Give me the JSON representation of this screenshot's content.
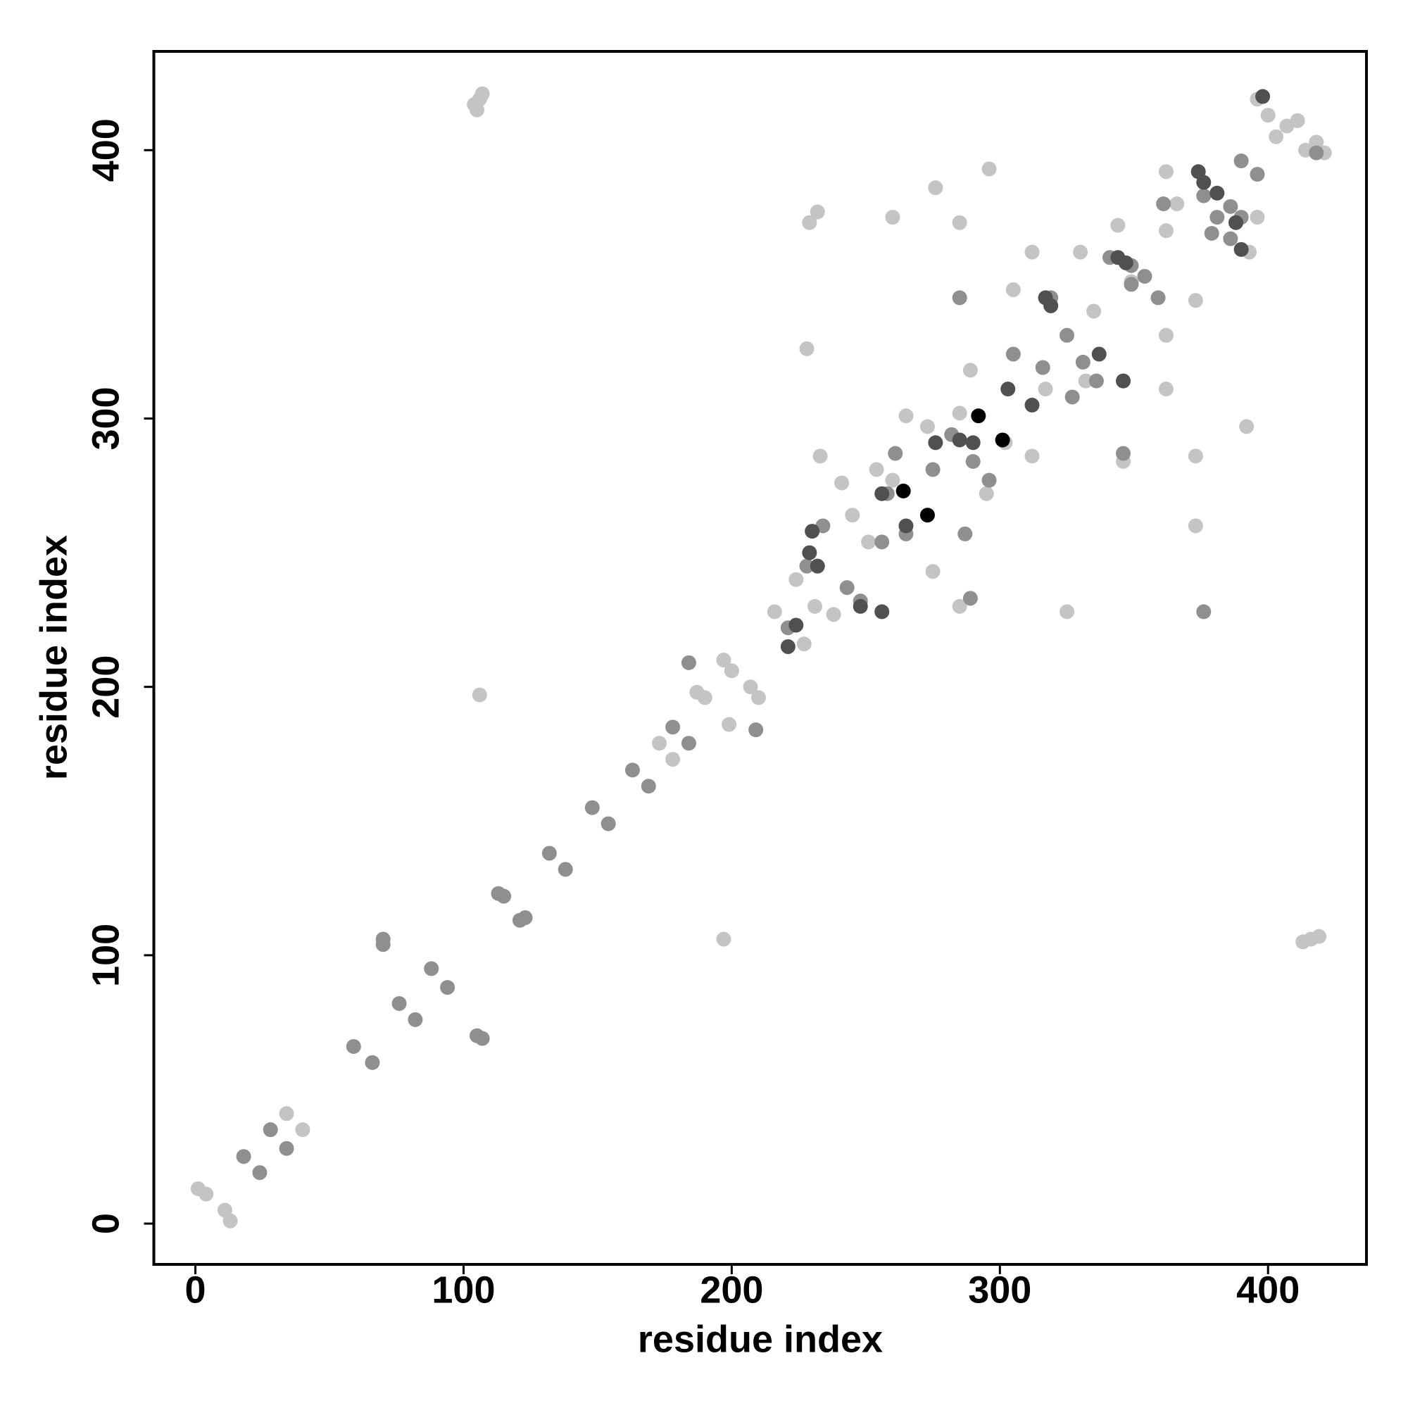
{
  "chart_data": {
    "type": "scatter",
    "xlabel": "residue index",
    "ylabel": "residue index",
    "xlim": [
      -15.5,
      436.7
    ],
    "ylim": [
      -15.2,
      436.8
    ],
    "xticks": [
      0,
      100,
      200,
      300,
      400
    ],
    "yticks": [
      0,
      100,
      200,
      300,
      400
    ],
    "series": [
      {
        "color": "#c4c4c4",
        "x": [
          1,
          4,
          11,
          13,
          34,
          40,
          104,
          106,
          107,
          105,
          106,
          197,
          413,
          416,
          419,
          396,
          400,
          403,
          407,
          411,
          414,
          418,
          421,
          173,
          178,
          187,
          190,
          197,
          200,
          199,
          207,
          210,
          216,
          227,
          228,
          229,
          232,
          260,
          276,
          285,
          296,
          260,
          275,
          285,
          325,
          373,
          373,
          392,
          362,
          362,
          362,
          362,
          373,
          312,
          330,
          344,
          366,
          393,
          396,
          346,
          312,
          317,
          332,
          335,
          349,
          305,
          289,
          285,
          273,
          265,
          241,
          245,
          251,
          231,
          238,
          224,
          233,
          254,
          295,
          302
        ],
        "values": [
          13,
          11,
          5,
          1,
          41,
          35,
          417,
          419,
          421,
          415,
          197,
          106,
          105,
          106,
          107,
          419,
          413,
          405,
          409,
          411,
          400,
          403,
          399,
          179,
          173,
          198,
          196,
          210,
          206,
          186,
          200,
          196,
          228,
          216,
          326,
          373,
          377,
          375,
          386,
          373,
          393,
          277,
          243,
          230,
          228,
          260,
          286,
          297,
          311,
          331,
          370,
          392,
          344,
          362,
          362,
          372,
          380,
          362,
          375,
          284,
          286,
          311,
          314,
          340,
          351,
          348,
          318,
          302,
          297,
          301,
          276,
          264,
          254,
          230,
          227,
          240,
          286,
          281,
          272,
          291
        ]
      },
      {
        "color": "#8f8f8f",
        "x": [
          18,
          24,
          28,
          34,
          59,
          66,
          70,
          70,
          76,
          82,
          88,
          94,
          105,
          107,
          113,
          115,
          123,
          121,
          132,
          138,
          148,
          154,
          163,
          169,
          178,
          184,
          184,
          209,
          221,
          228,
          234,
          243,
          248,
          256,
          258,
          261,
          265,
          275,
          282,
          287,
          290,
          289,
          285,
          296,
          305,
          316,
          319,
          325,
          327,
          331,
          336,
          341,
          349,
          354,
          359,
          349,
          376,
          381,
          386,
          390,
          396,
          379,
          386,
          418,
          346,
          376,
          346,
          361,
          390
        ],
        "values": [
          25,
          19,
          35,
          28,
          66,
          60,
          106,
          104,
          82,
          76,
          95,
          88,
          70,
          69,
          123,
          122,
          114,
          113,
          138,
          132,
          155,
          149,
          169,
          163,
          185,
          179,
          209,
          184,
          222,
          245,
          260,
          237,
          232,
          254,
          272,
          287,
          257,
          281,
          294,
          257,
          284,
          233,
          345,
          277,
          324,
          319,
          345,
          331,
          308,
          321,
          314,
          360,
          357,
          353,
          345,
          350,
          383,
          375,
          379,
          396,
          391,
          369,
          367,
          399,
          287,
          228,
          314,
          380,
          375
        ]
      },
      {
        "color": "#505050",
        "x": [
          229,
          230,
          232,
          248,
          256,
          256,
          265,
          276,
          285,
          303,
          312,
          317,
          319,
          337,
          344,
          347,
          346,
          374,
          376,
          381,
          388,
          390,
          398,
          221,
          224,
          290
        ],
        "values": [
          250,
          258,
          245,
          230,
          228,
          272,
          260,
          291,
          292,
          311,
          305,
          345,
          342,
          324,
          360,
          358,
          314,
          392,
          388,
          384,
          373,
          363,
          420,
          215,
          223,
          291
        ]
      },
      {
        "color": "#000000",
        "x": [
          264,
          273,
          292,
          301
        ],
        "values": [
          273,
          264,
          301,
          292
        ]
      }
    ]
  }
}
